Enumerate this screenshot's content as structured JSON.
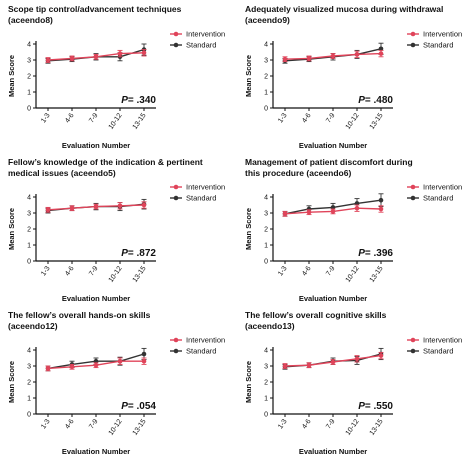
{
  "colors": {
    "intervention": "#e0445a",
    "standard": "#333333",
    "axis": "#111111"
  },
  "chart_data": [
    {
      "type": "line",
      "title_lines": [
        "Scope tip control/advancement techniques",
        "(aceendo8)"
      ],
      "categories": [
        "1-3",
        "4-6",
        "7-9",
        "10-12",
        "13-15"
      ],
      "xlabel": "Evaluation Number",
      "ylabel": "Mean Score",
      "ylim": [
        0,
        4
      ],
      "yticks": [
        "0",
        "1",
        "2",
        "3",
        "4"
      ],
      "p_label": "P",
      "p_value": "= .340",
      "legend_placement": "top-right",
      "series": [
        {
          "name": "Intervention",
          "values": [
            3.0,
            3.1,
            3.2,
            3.4,
            3.45
          ],
          "err": [
            0.15,
            0.15,
            0.15,
            0.2,
            0.2
          ]
        },
        {
          "name": "Standard",
          "values": [
            2.95,
            3.05,
            3.2,
            3.2,
            3.65
          ],
          "err": [
            0.15,
            0.15,
            0.2,
            0.25,
            0.35
          ]
        }
      ]
    },
    {
      "type": "line",
      "title_lines": [
        "Adequately visualized mucosa during withdrawal",
        "(aceendo9)"
      ],
      "categories": [
        "1-3",
        "4-6",
        "7-9",
        "10-12",
        "13-15"
      ],
      "xlabel": "Evaluation Number",
      "ylabel": "Mean Score",
      "ylim": [
        0,
        4
      ],
      "yticks": [
        "0",
        "1",
        "2",
        "3",
        "4"
      ],
      "p_label": "P",
      "p_value": "= .480",
      "legend_placement": "top-right",
      "series": [
        {
          "name": "Intervention",
          "values": [
            3.05,
            3.1,
            3.25,
            3.35,
            3.4
          ],
          "err": [
            0.15,
            0.15,
            0.15,
            0.2,
            0.2
          ]
        },
        {
          "name": "Standard",
          "values": [
            2.95,
            3.05,
            3.2,
            3.35,
            3.7
          ],
          "err": [
            0.15,
            0.15,
            0.2,
            0.25,
            0.35
          ]
        }
      ]
    },
    {
      "type": "line",
      "title_lines": [
        "Fellow’s knowledge of the indication & pertinent",
        "medical issues (aceendo5)"
      ],
      "categories": [
        "1-3",
        "4-6",
        "7-9",
        "10-12",
        "13-15"
      ],
      "xlabel": "Evaluation Number",
      "ylabel": "Mean Score",
      "ylim": [
        0,
        4
      ],
      "yticks": [
        "0",
        "1",
        "2",
        "3",
        "4"
      ],
      "p_label": "P",
      "p_value": "= .872",
      "legend_placement": "top-right",
      "series": [
        {
          "name": "Intervention",
          "values": [
            3.2,
            3.3,
            3.4,
            3.45,
            3.5
          ],
          "err": [
            0.15,
            0.15,
            0.15,
            0.2,
            0.2
          ]
        },
        {
          "name": "Standard",
          "values": [
            3.15,
            3.3,
            3.4,
            3.4,
            3.55
          ],
          "err": [
            0.15,
            0.15,
            0.2,
            0.25,
            0.3
          ]
        }
      ]
    },
    {
      "type": "line",
      "title_lines": [
        "Management of patient discomfort during",
        "this procedure (aceendo6)"
      ],
      "categories": [
        "1-3",
        "4-6",
        "7-9",
        "10-12",
        "13-15"
      ],
      "xlabel": "Evaluation Number",
      "ylabel": "Mean Score",
      "ylim": [
        0,
        4
      ],
      "yticks": [
        "0",
        "1",
        "2",
        "3",
        "4"
      ],
      "p_label": "P",
      "p_value": "= .396",
      "legend_placement": "top-right",
      "series": [
        {
          "name": "Intervention",
          "values": [
            2.95,
            3.05,
            3.1,
            3.3,
            3.25
          ],
          "err": [
            0.15,
            0.15,
            0.15,
            0.2,
            0.2
          ]
        },
        {
          "name": "Standard",
          "values": [
            2.95,
            3.25,
            3.35,
            3.6,
            3.8
          ],
          "err": [
            0.15,
            0.2,
            0.25,
            0.3,
            0.4
          ]
        }
      ]
    },
    {
      "type": "line",
      "title_lines": [
        "The fellow’s overall hands-on skills",
        "(aceendo12)"
      ],
      "categories": [
        "1-3",
        "4-6",
        "7-9",
        "10-12",
        "13-15"
      ],
      "xlabel": "Evaluation Number",
      "ylabel": "Mean Score",
      "ylim": [
        0,
        4
      ],
      "yticks": [
        "0",
        "1",
        "2",
        "3",
        "4"
      ],
      "p_label": "P",
      "p_value": "= .054",
      "legend_placement": "top-right",
      "series": [
        {
          "name": "Intervention",
          "values": [
            2.85,
            2.95,
            3.05,
            3.3,
            3.3
          ],
          "err": [
            0.15,
            0.15,
            0.15,
            0.2,
            0.2
          ]
        },
        {
          "name": "Standard",
          "values": [
            2.85,
            3.1,
            3.3,
            3.3,
            3.75
          ],
          "err": [
            0.15,
            0.2,
            0.2,
            0.25,
            0.35
          ]
        }
      ]
    },
    {
      "type": "line",
      "title_lines": [
        "The fellow’s overall cognitive skills",
        "(aceendo13)"
      ],
      "categories": [
        "1-3",
        "4-6",
        "7-9",
        "10-12",
        "13-15"
      ],
      "xlabel": "Evaluation Number",
      "ylabel": "Mean Score",
      "ylim": [
        0,
        4
      ],
      "yticks": [
        "0",
        "1",
        "2",
        "3",
        "4"
      ],
      "p_label": "P",
      "p_value": "= .550",
      "legend_placement": "top-right",
      "series": [
        {
          "name": "Intervention",
          "values": [
            3.0,
            3.05,
            3.25,
            3.45,
            3.65
          ],
          "err": [
            0.15,
            0.15,
            0.15,
            0.2,
            0.2
          ]
        },
        {
          "name": "Standard",
          "values": [
            2.95,
            3.05,
            3.3,
            3.35,
            3.75
          ],
          "err": [
            0.15,
            0.15,
            0.2,
            0.25,
            0.35
          ]
        }
      ]
    }
  ]
}
